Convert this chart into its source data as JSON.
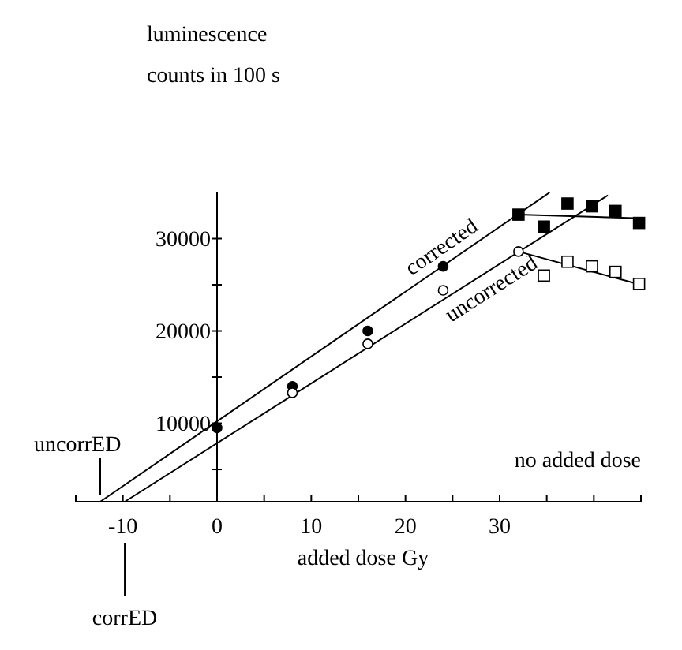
{
  "chart_data": {
    "type": "line",
    "ylabel": "luminescence\ncounts in 100 s",
    "xlabel": "added dose  Gy",
    "xlim": [
      -15,
      45
    ],
    "xticks": [
      {
        "value": -15,
        "label": null
      },
      -10,
      {
        "value": -5,
        "label": null
      },
      0,
      {
        "value": 5,
        "label": null
      },
      10,
      {
        "value": 15,
        "label": null
      },
      20,
      {
        "value": 25,
        "label": null
      },
      30,
      {
        "value": 35,
        "label": null
      },
      {
        "value": 40,
        "label": null
      },
      {
        "value": 45,
        "label": null
      }
    ],
    "ylim": [
      1500,
      35000
    ],
    "yticks": [
      {
        "value": 5000,
        "label": null
      },
      10000,
      {
        "value": 15000,
        "label": null
      },
      20000,
      {
        "value": 25000,
        "label": null
      },
      30000
    ],
    "grid": false,
    "series": [
      {
        "name": "corrected",
        "color": "#000000",
        "marker": "none",
        "x": [
          -12.4,
          35.3
        ],
        "values": [
          1500,
          35000
        ]
      },
      {
        "name": "uncorrected",
        "color": "#000000",
        "marker": "none",
        "x": [
          -9.8,
          41.5
        ],
        "values": [
          1500,
          34700
        ]
      },
      {
        "color": "#000000",
        "marker": "none",
        "x": [
          32,
          45
        ],
        "values": [
          32600,
          32200
        ]
      },
      {
        "color": "#000000",
        "marker": "none",
        "x": [
          32,
          45
        ],
        "values": [
          28600,
          25000
        ]
      },
      {
        "type": "scatter",
        "color": "#000000",
        "marker": "circle",
        "x": [
          0,
          8,
          16,
          24
        ],
        "values": [
          9500,
          14000,
          20000,
          27000
        ]
      },
      {
        "type": "scatter",
        "color": "#ffffff",
        "marker": "circle",
        "x": [
          8,
          16,
          24,
          32
        ],
        "values": [
          13300,
          18600,
          24400,
          28600
        ]
      },
      {
        "type": "scatter",
        "color": "#000000",
        "marker": "square",
        "x": [
          32,
          34.7,
          37.2,
          39.8,
          42.3,
          44.8
        ],
        "values": [
          32600,
          31300,
          33800,
          33500,
          33000,
          31700
        ]
      },
      {
        "type": "scatter",
        "color": "#ffffff",
        "marker": "square",
        "x": [
          34.7,
          37.2,
          39.8,
          42.3,
          44.8
        ],
        "values": [
          26000,
          27500,
          27000,
          26400,
          25100
        ]
      }
    ],
    "ref_lines": [
      {
        "axis": "x",
        "value": -12.4,
        "label": "uncorrED"
      },
      {
        "axis": "x",
        "value": -9.8,
        "label": "corrED"
      }
    ],
    "annotations": [
      "no added dose"
    ]
  }
}
